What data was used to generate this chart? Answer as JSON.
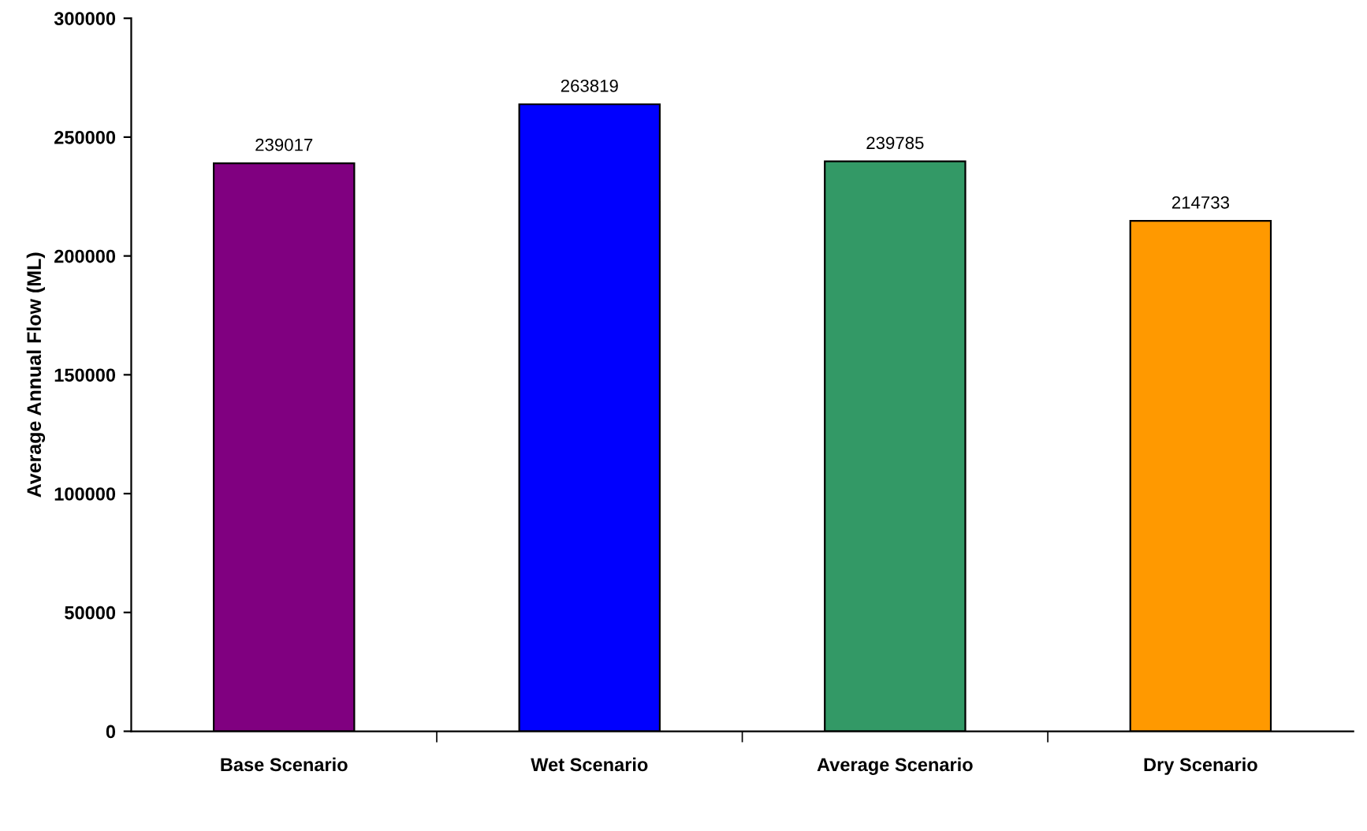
{
  "chart_data": {
    "type": "bar",
    "ylabel": "Average Annual Flow (ML)",
    "categories": [
      "Base Scenario",
      "Wet Scenario",
      "Average Scenario",
      "Dry Scenario"
    ],
    "values": [
      239017,
      263819,
      239785,
      214733
    ],
    "colors": [
      "#800080",
      "#0000ff",
      "#339966",
      "#ff9900"
    ],
    "ylim": [
      0,
      300000
    ],
    "yticks": [
      0,
      50000,
      100000,
      150000,
      200000,
      250000,
      300000
    ],
    "data_labels": true,
    "grid": false,
    "legend": false
  }
}
